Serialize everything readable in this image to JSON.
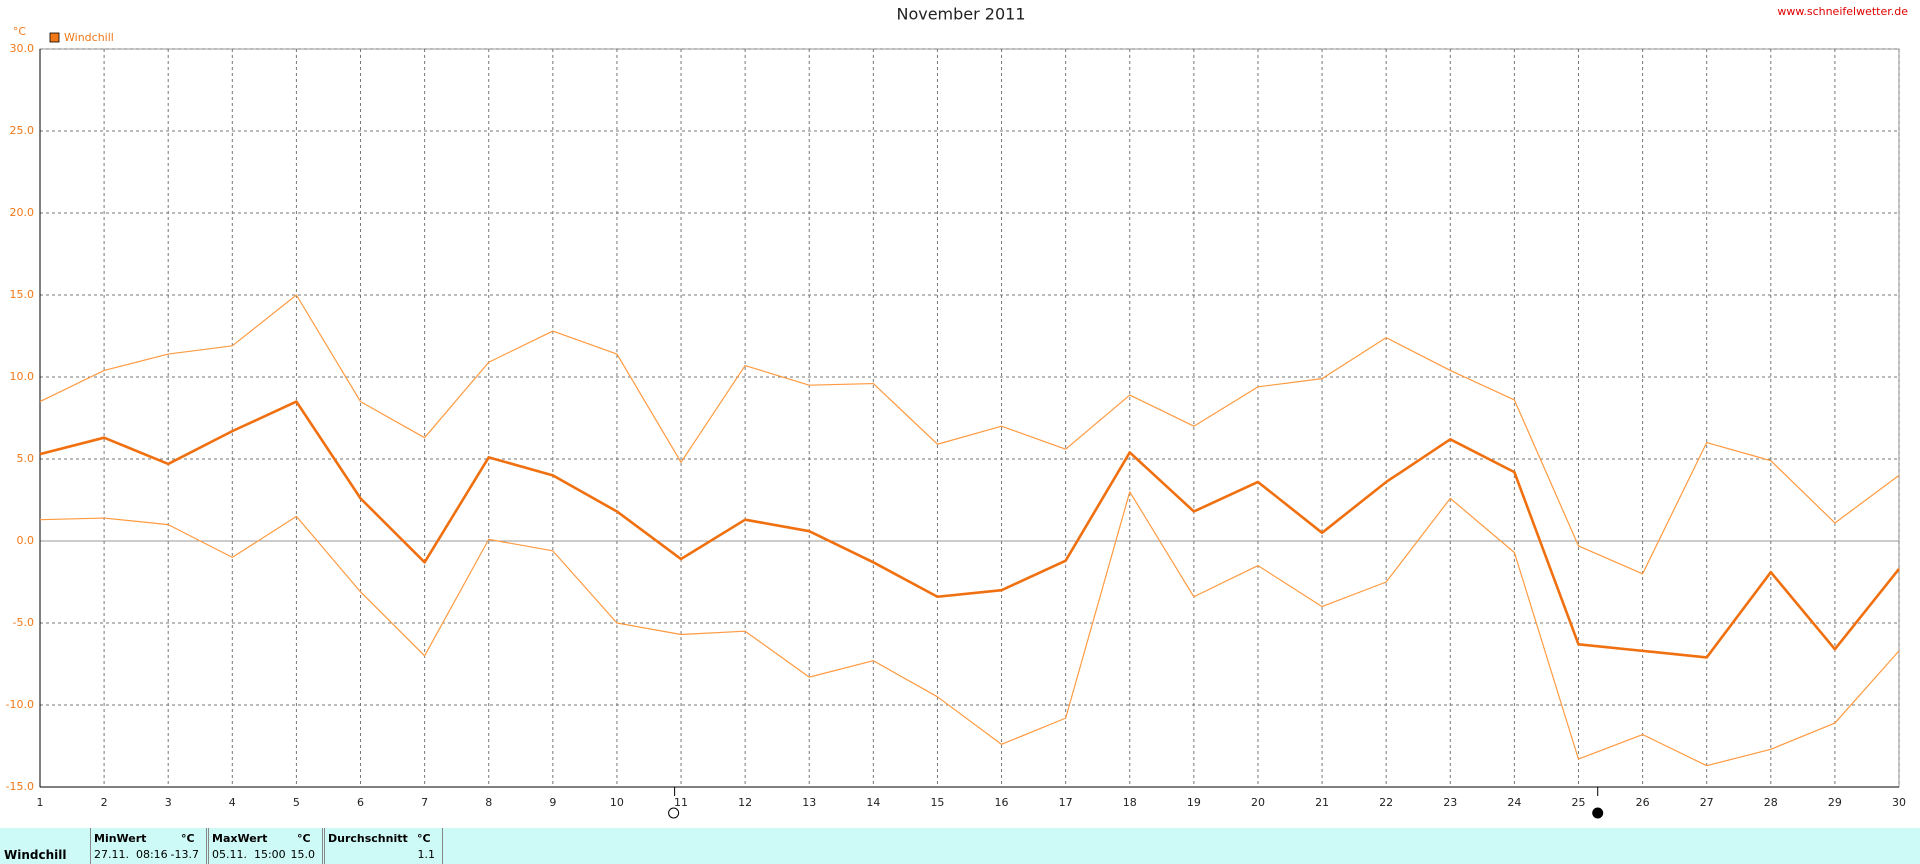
{
  "chart_data": {
    "type": "line",
    "title": "November 2011",
    "watermark": "www.schneifelwetter.de",
    "y_unit": "°C",
    "legend": "Windchill",
    "legend_color": "#f07818",
    "x": [
      1,
      2,
      3,
      4,
      5,
      6,
      7,
      8,
      9,
      10,
      11,
      12,
      13,
      14,
      15,
      16,
      17,
      18,
      19,
      20,
      21,
      22,
      23,
      24,
      25,
      26,
      27,
      28,
      29,
      30
    ],
    "xlim": [
      1,
      30
    ],
    "xticks": [
      1,
      2,
      3,
      4,
      5,
      6,
      7,
      8,
      9,
      10,
      11,
      12,
      13,
      14,
      15,
      16,
      17,
      18,
      19,
      20,
      21,
      22,
      23,
      24,
      25,
      26,
      27,
      28,
      29,
      30
    ],
    "ylim": [
      -15,
      30
    ],
    "yticks": [
      {
        "value": -15,
        "label": "-15.0"
      },
      {
        "value": -10,
        "label": "-10.0"
      },
      {
        "value": -5,
        "label": "-5.0"
      },
      {
        "value": 0,
        "label": "0.0"
      },
      {
        "value": 5,
        "label": "5.0"
      },
      {
        "value": 10,
        "label": "10.0"
      },
      {
        "value": 15,
        "label": "15.0"
      },
      {
        "value": 20,
        "label": "20.0"
      },
      {
        "value": 25,
        "label": "25.0"
      },
      {
        "value": 30,
        "label": "30.0"
      }
    ],
    "grid": true,
    "series": [
      {
        "color": "#ff9a40",
        "line_width": 1.2,
        "values": [
          8.5,
          10.4,
          11.4,
          11.9,
          15.0,
          8.5,
          6.3,
          10.9,
          12.8,
          11.4,
          4.8,
          10.7,
          9.5,
          9.6,
          5.9,
          7.0,
          5.6,
          8.9,
          7.0,
          9.4,
          9.9,
          12.4,
          10.4,
          8.6,
          -0.3,
          -2.0,
          6.0,
          4.9,
          1.1,
          4.0
        ]
      },
      {
        "color": "#f07010",
        "line_width": 2.6,
        "values": [
          5.3,
          6.3,
          4.7,
          6.7,
          8.5,
          2.6,
          -1.3,
          5.1,
          4.0,
          1.8,
          -1.1,
          1.3,
          0.6,
          -1.3,
          -3.4,
          -3.0,
          -1.2,
          5.4,
          1.8,
          3.6,
          0.5,
          3.6,
          6.2,
          4.2,
          -6.3,
          -6.7,
          -7.1,
          -1.9,
          -6.6,
          -1.7
        ]
      },
      {
        "color": "#ff9a40",
        "line_width": 1.2,
        "values": [
          1.3,
          1.4,
          1.0,
          -1.0,
          1.5,
          -3.1,
          -7.0,
          0.1,
          -0.6,
          -5.0,
          -5.7,
          -5.5,
          -8.3,
          -7.3,
          -9.5,
          -12.4,
          -10.8,
          3.0,
          -3.4,
          -1.5,
          -4.0,
          -2.5,
          2.6,
          -0.7,
          -13.3,
          -11.8,
          -13.7,
          -12.7,
          -11.1,
          -6.7
        ]
      }
    ],
    "full_moon_x": 10.9,
    "new_moon_x": 25.3,
    "stats": {
      "name": "Windchill",
      "columns": [
        {
          "header": "MinWert",
          "unit": "°C",
          "time": "27.11.  08:16",
          "value": "-13.7"
        },
        {
          "header": "MaxWert",
          "unit": "°C",
          "time": "05.11.  15:00",
          "value": "15.0"
        },
        {
          "header": "Durchschnitt",
          "unit": "°C",
          "time": "",
          "value": "1.1"
        }
      ]
    }
  }
}
